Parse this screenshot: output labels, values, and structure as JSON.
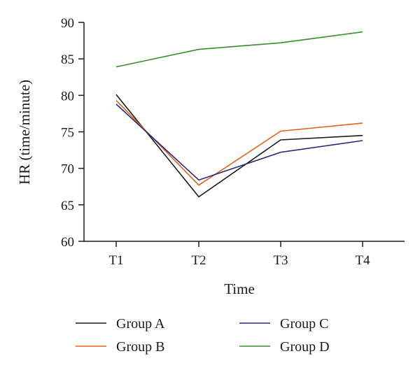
{
  "chart_data": {
    "type": "line",
    "title": "",
    "xlabel": "Time",
    "ylabel": "HR (time/minute)",
    "categories": [
      "T1",
      "T2",
      "T3",
      "T4"
    ],
    "ylim": [
      60,
      90
    ],
    "yticks": [
      "60",
      "65",
      "70",
      "75",
      "80",
      "85",
      "90"
    ],
    "grid": false,
    "legend_position": "bottom",
    "series": [
      {
        "name": "Group A",
        "color": "#1a1a1a",
        "values": [
          80.1,
          66.1,
          73.9,
          74.5
        ]
      },
      {
        "name": "Group B",
        "color": "#e2621b",
        "values": [
          79.3,
          67.7,
          75.1,
          76.2
        ]
      },
      {
        "name": "Group C",
        "color": "#2e2a7e",
        "values": [
          78.8,
          68.4,
          72.2,
          73.8
        ]
      },
      {
        "name": "Group D",
        "color": "#3a8d2e",
        "values": [
          83.9,
          86.3,
          87.2,
          88.7
        ]
      }
    ]
  }
}
